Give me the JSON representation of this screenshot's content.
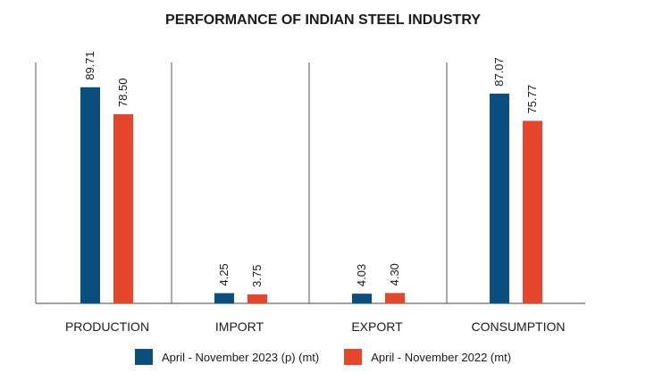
{
  "chart_data": {
    "type": "bar",
    "title": "PERFORMANCE OF INDIAN STEEL INDUSTRY",
    "categories": [
      "PRODUCTION",
      "IMPORT",
      "EXPORT",
      "CONSUMPTION"
    ],
    "series": [
      {
        "name": "April - November 2023 (p) (mt)",
        "values": [
          89.71,
          4.25,
          4.03,
          87.07
        ],
        "labels": [
          "89.71",
          "4.25",
          "4.03",
          "87.07"
        ],
        "color": "#0b4f80"
      },
      {
        "name": "April - November 2022 (mt)",
        "values": [
          78.5,
          3.75,
          4.3,
          75.77
        ],
        "labels": [
          "78.50",
          "3.75",
          "4.30",
          "75.77"
        ],
        "color": "#e5452a"
      }
    ],
    "ylim": [
      0,
      100
    ],
    "grid": false,
    "legend_position": "bottom"
  }
}
